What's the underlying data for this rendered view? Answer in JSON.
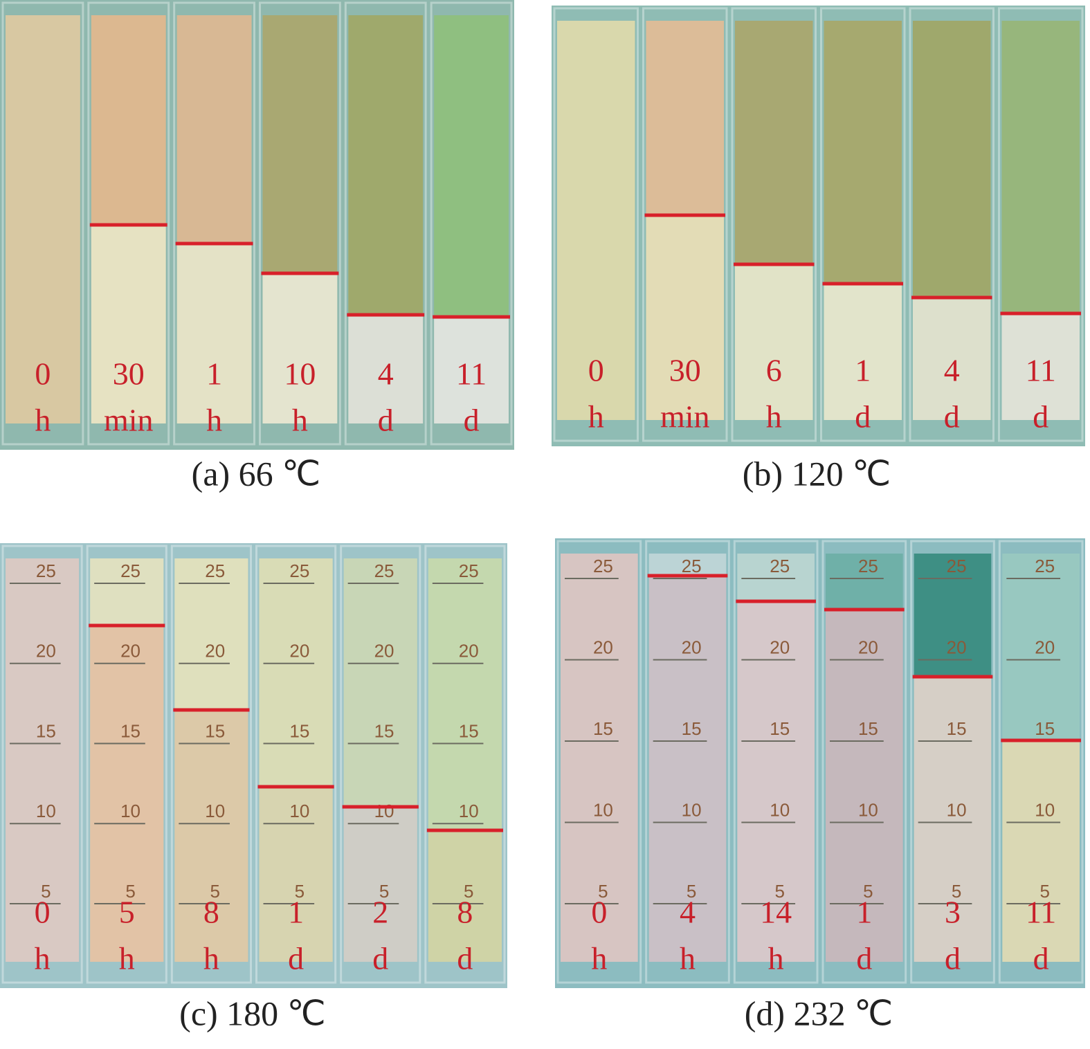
{
  "panels": [
    {
      "caption": "(a) 66 ℃",
      "tubes": [
        {
          "number": "0",
          "unit": "h"
        },
        {
          "number": "30",
          "unit": "min"
        },
        {
          "number": "1",
          "unit": "h"
        },
        {
          "number": "10",
          "unit": "h"
        },
        {
          "number": "4",
          "unit": "d"
        },
        {
          "number": "11",
          "unit": "d"
        }
      ]
    },
    {
      "caption": "(b) 120 ℃",
      "tubes": [
        {
          "number": "0",
          "unit": "h"
        },
        {
          "number": "30",
          "unit": "min"
        },
        {
          "number": "6",
          "unit": "h"
        },
        {
          "number": "1",
          "unit": "d"
        },
        {
          "number": "4",
          "unit": "d"
        },
        {
          "number": "11",
          "unit": "d"
        }
      ]
    },
    {
      "caption": "(c) 180 ℃",
      "scale": [
        "25",
        "20",
        "15",
        "10",
        "5"
      ],
      "tubes": [
        {
          "number": "0",
          "unit": "h"
        },
        {
          "number": "5",
          "unit": "h"
        },
        {
          "number": "8",
          "unit": "h"
        },
        {
          "number": "1",
          "unit": "d"
        },
        {
          "number": "2",
          "unit": "d"
        },
        {
          "number": "8",
          "unit": "d"
        }
      ]
    },
    {
      "caption": "(d) 232 ℃",
      "scale": [
        "25",
        "20",
        "15",
        "10",
        "5"
      ],
      "tubes": [
        {
          "number": "0",
          "unit": "h"
        },
        {
          "number": "4",
          "unit": "h"
        },
        {
          "number": "14",
          "unit": "h"
        },
        {
          "number": "1",
          "unit": "d"
        },
        {
          "number": "3",
          "unit": "d"
        },
        {
          "number": "11",
          "unit": "d"
        }
      ]
    }
  ]
}
